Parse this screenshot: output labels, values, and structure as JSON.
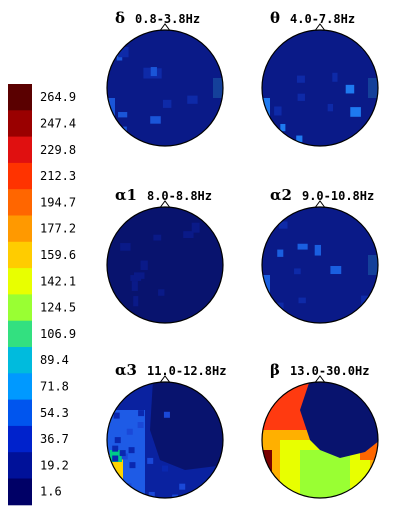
{
  "chart_data": {
    "type": "heatmap",
    "colorbar": {
      "ticks": [
        "264.9",
        "247.4",
        "229.8",
        "212.3",
        "194.7",
        "177.2",
        "159.6",
        "142.1",
        "124.5",
        "106.9",
        "89.4",
        "71.8",
        "54.3",
        "36.7",
        "19.2",
        "1.6"
      ],
      "colors": [
        "#5a0000",
        "#9a0000",
        "#e01010",
        "#ff3300",
        "#ff6600",
        "#ff9900",
        "#ffcc00",
        "#e8ff00",
        "#99ff33",
        "#33e080",
        "#00bbdd",
        "#0099ff",
        "#0055ee",
        "#0022cc",
        "#001199",
        "#000066"
      ],
      "range": [
        1.6,
        264.9
      ]
    },
    "panels": [
      {
        "symbol": "δ",
        "band": "0.8-3.8Hz",
        "background": "#0a1a88",
        "accent": "#1a55d8"
      },
      {
        "symbol": "θ",
        "band": "4.0-7.8Hz",
        "background": "#0a1a88",
        "accent": "#1e7af0"
      },
      {
        "symbol": "α1",
        "band": "8.0-8.8Hz",
        "background": "#08136e",
        "accent": "#0a1a88"
      },
      {
        "symbol": "α2",
        "band": "9.0-10.8Hz",
        "background": "#0a1a88",
        "accent": "#1a5fe0"
      },
      {
        "symbol": "α3",
        "band": "11.0-12.8Hz",
        "background": "#0a22a0",
        "accent": "#ffd400"
      },
      {
        "symbol": "β",
        "band": "13.0-30.0Hz",
        "background": "#ff3a10",
        "accent": "#08136e"
      }
    ]
  }
}
